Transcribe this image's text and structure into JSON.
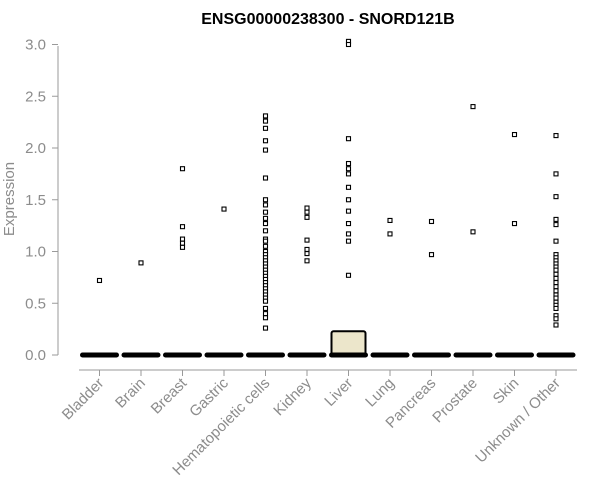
{
  "chart_data": {
    "type": "box",
    "title": "ENSG00000238300 - SNORD121B",
    "xlabel": "",
    "ylabel": "Expression",
    "ylim": [
      0,
      3.05
    ],
    "yticks": [
      "0.0",
      "0.5",
      "1.0",
      "1.5",
      "2.0",
      "2.5",
      "3.0"
    ],
    "ytick_values": [
      0,
      0.5,
      1.0,
      1.5,
      2.0,
      2.5,
      3.0
    ],
    "grid": false,
    "box_fill": "#ece6cb",
    "categories": [
      "Bladder",
      "Brain",
      "Breast",
      "Gastric",
      "Hematopoietic cells",
      "Kidney",
      "Liver",
      "Lung",
      "Pancreas",
      "Prostate",
      "Skin",
      "Unknown / Other"
    ],
    "boxes": [
      {
        "category": "Bladder",
        "q1": 0,
        "median": 0,
        "q3": 0,
        "outliers": [
          0.72
        ]
      },
      {
        "category": "Brain",
        "q1": 0,
        "median": 0,
        "q3": 0,
        "outliers": [
          0.89
        ]
      },
      {
        "category": "Breast",
        "q1": 0,
        "median": 0,
        "q3": 0,
        "outliers": [
          1.8,
          1.24,
          1.12,
          1.08,
          1.04
        ]
      },
      {
        "category": "Gastric",
        "q1": 0,
        "median": 0,
        "q3": 0,
        "outliers": [
          1.41
        ]
      },
      {
        "category": "Hematopoietic cells",
        "q1": 0,
        "median": 0,
        "q3": 0,
        "outliers": [
          2.31,
          2.26,
          2.19,
          2.07,
          1.98,
          1.71,
          1.5,
          1.45,
          1.38,
          1.32,
          1.27,
          1.2,
          1.12,
          1.1,
          1.05,
          1.0,
          0.97,
          0.94,
          0.91,
          0.88,
          0.85,
          0.82,
          0.79,
          0.76,
          0.73,
          0.7,
          0.67,
          0.64,
          0.61,
          0.58,
          0.55,
          0.52,
          0.45,
          0.4,
          0.36,
          0.26
        ]
      },
      {
        "category": "Kidney",
        "q1": 0,
        "median": 0,
        "q3": 0,
        "outliers": [
          1.42,
          1.38,
          1.33,
          1.11,
          1.02,
          0.98,
          0.91
        ]
      },
      {
        "category": "Liver",
        "q1": 0,
        "median": 0,
        "q3": 0.23,
        "outliers": [
          3.03,
          3.0,
          2.09,
          1.85,
          1.8,
          1.75,
          1.62,
          1.5,
          1.39,
          1.27,
          1.17,
          1.1,
          0.77
        ]
      },
      {
        "category": "Lung",
        "q1": 0,
        "median": 0,
        "q3": 0,
        "outliers": [
          1.3,
          1.17
        ]
      },
      {
        "category": "Pancreas",
        "q1": 0,
        "median": 0,
        "q3": 0,
        "outliers": [
          1.29,
          0.97
        ]
      },
      {
        "category": "Prostate",
        "q1": 0,
        "median": 0,
        "q3": 0,
        "outliers": [
          2.4,
          1.19
        ]
      },
      {
        "category": "Skin",
        "q1": 0,
        "median": 0,
        "q3": 0,
        "outliers": [
          2.13,
          1.27
        ]
      },
      {
        "category": "Unknown / Other",
        "q1": 0,
        "median": 0,
        "q3": 0,
        "outliers": [
          2.12,
          1.75,
          1.53,
          1.31,
          1.26,
          1.1,
          0.97,
          0.94,
          0.91,
          0.88,
          0.85,
          0.82,
          0.78,
          0.74,
          0.7,
          0.66,
          0.62,
          0.58,
          0.55,
          0.51,
          0.48,
          0.45,
          0.38,
          0.35,
          0.29
        ]
      }
    ]
  }
}
